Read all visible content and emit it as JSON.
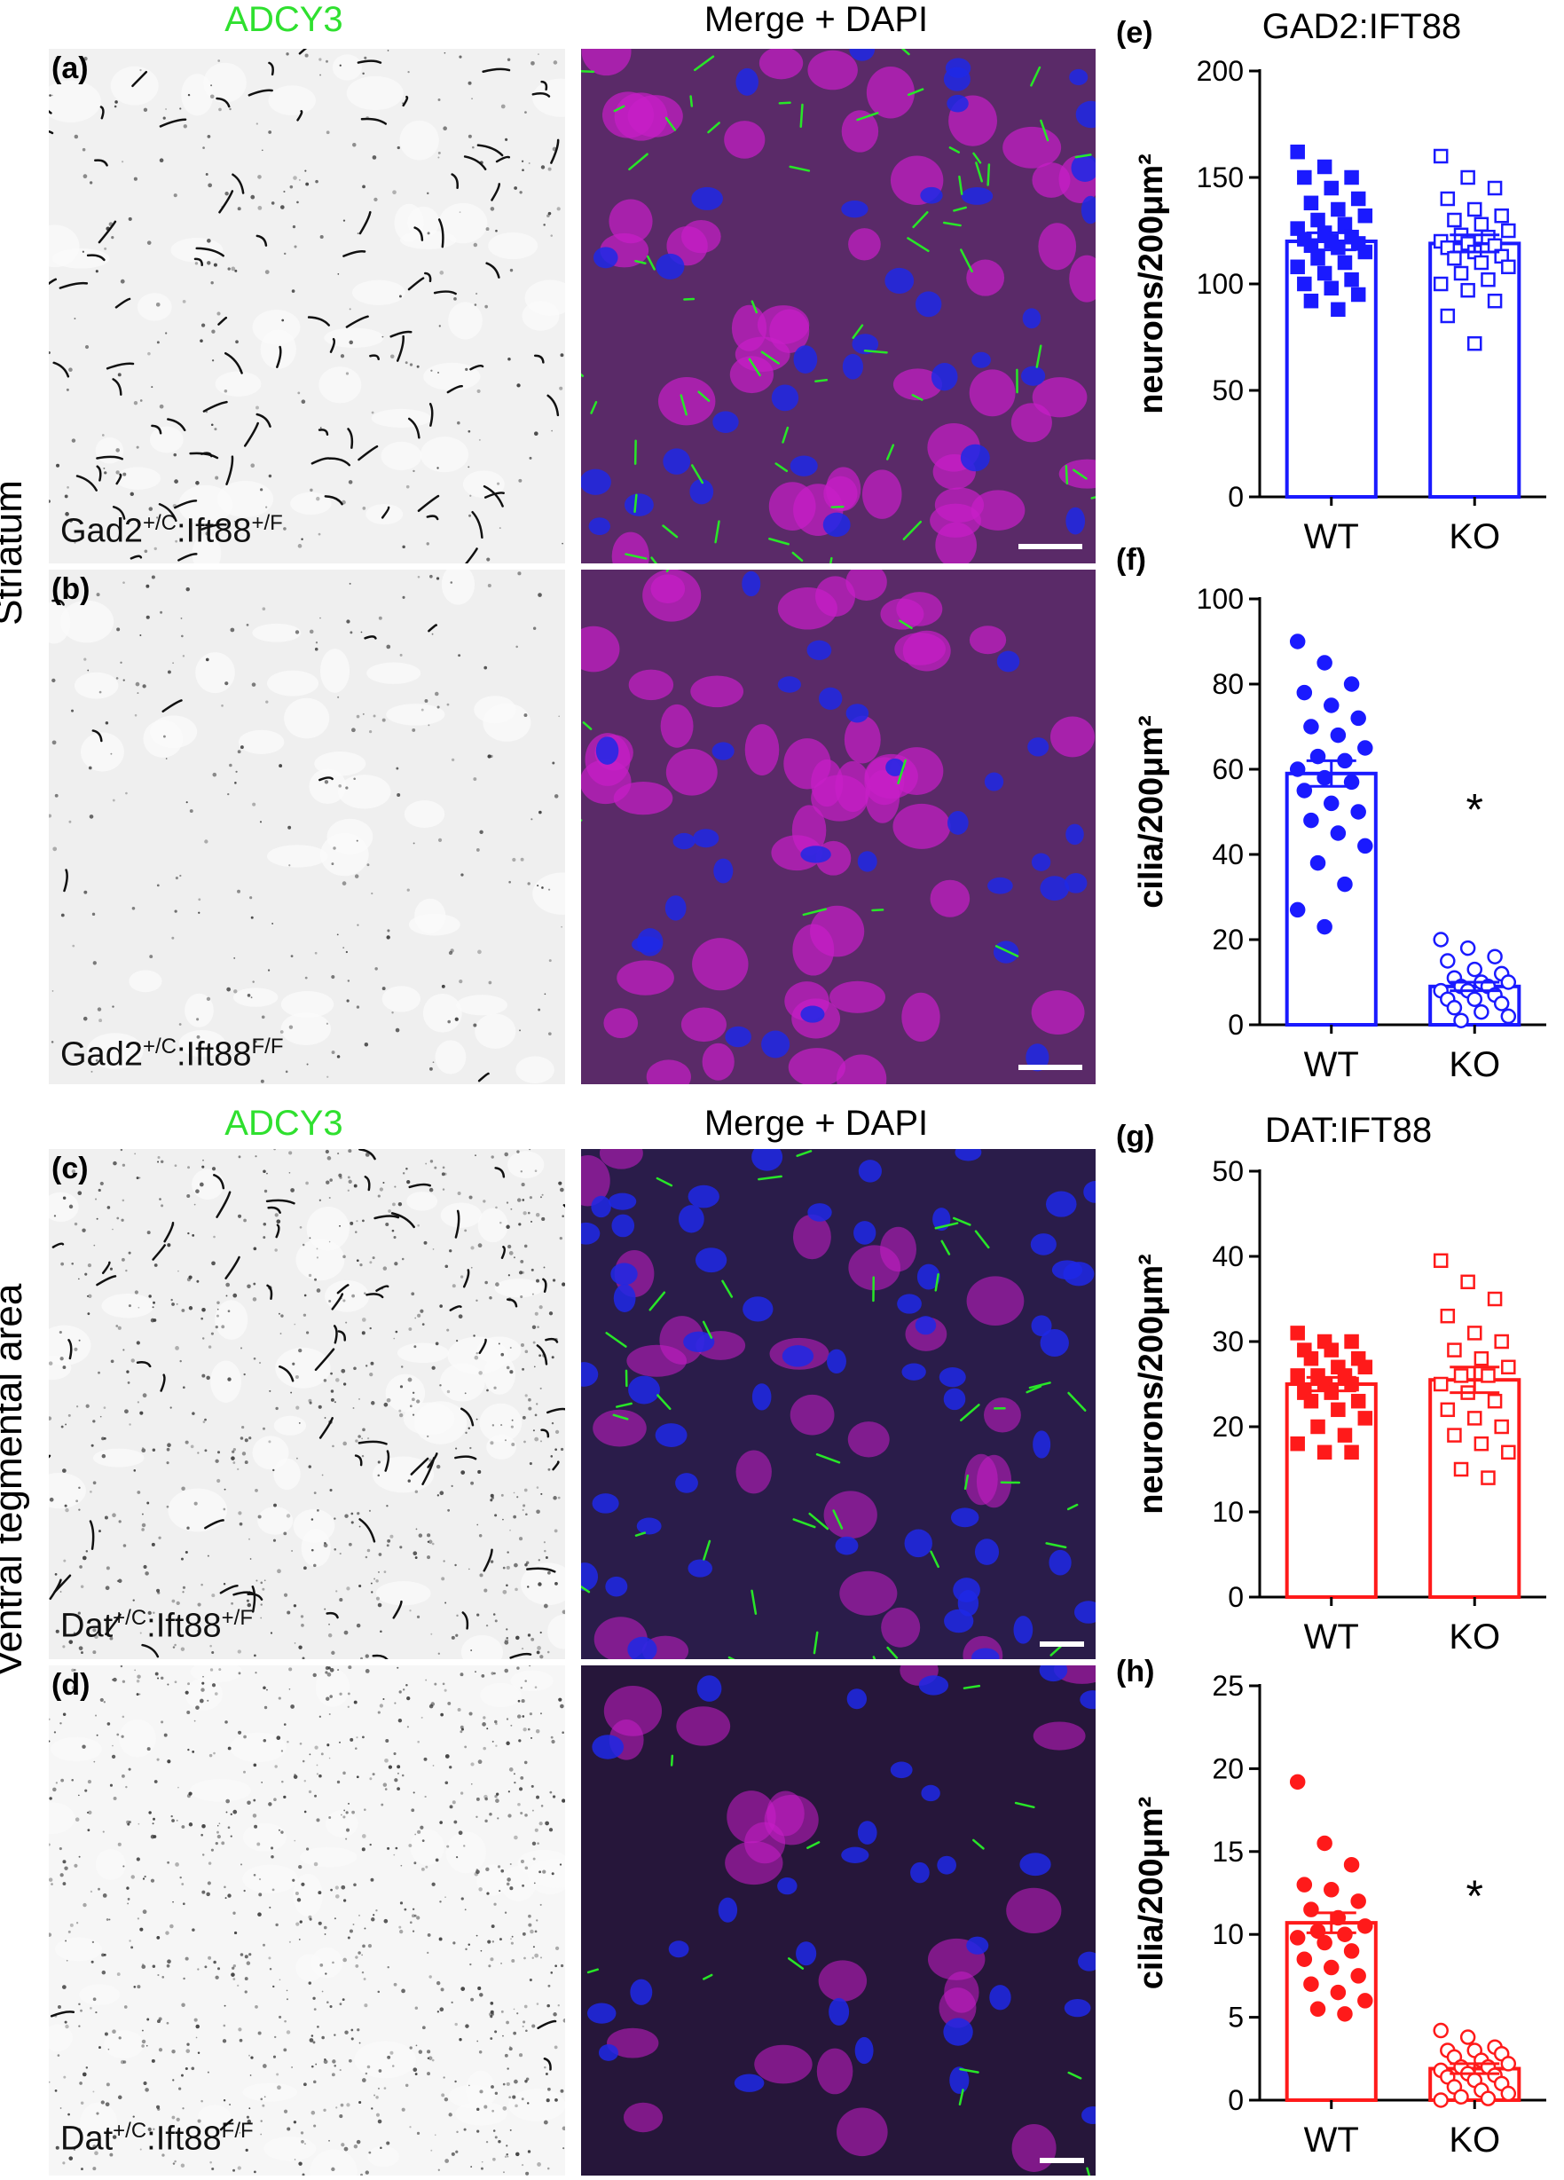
{
  "columns": {
    "adcy3": "ADCY3",
    "merge": "Merge + DAPI"
  },
  "regions": {
    "striatum": "Striatum",
    "vta": "Ventral tegmental area"
  },
  "panels": [
    {
      "letter": "(a)",
      "geno_base1": "Gad2",
      "geno_sup1": "+/C",
      "geno_base2": ":Ift88",
      "geno_sup2": "+/F"
    },
    {
      "letter": "(b)",
      "geno_base1": "Gad2",
      "geno_sup1": "+/C",
      "geno_base2": ":Ift88",
      "geno_sup2": "F/F"
    },
    {
      "letter": "(c)",
      "geno_base1": "Dat",
      "geno_sup1": "+/C",
      "geno_base2": ":Ift88",
      "geno_sup2": "+/F"
    },
    {
      "letter": "(d)",
      "geno_base1": "Dat",
      "geno_sup1": "+/C",
      "geno_base2": ":Ift88",
      "geno_sup2": "F/F"
    }
  ],
  "colors": {
    "blue": "#1a1aff",
    "red": "#ff1a1a",
    "magenta": "#c81ec8",
    "dapi": "#1e28e6",
    "cilia": "#28e628"
  },
  "chart_data": [
    {
      "id": "e",
      "letter": "(e)",
      "type": "bar",
      "title": "GAD2:IFT88",
      "ylabel": "neurons/200μm²",
      "ylim": [
        0,
        200
      ],
      "yticks": [
        0,
        50,
        100,
        150,
        200
      ],
      "categories": [
        "WT",
        "KO"
      ],
      "values": [
        120,
        119
      ],
      "sem": [
        4,
        4
      ],
      "color": "#1a1aff",
      "marker_wt": "square-filled",
      "marker_ko": "square-open",
      "points_wt": [
        162,
        155,
        150,
        150,
        145,
        140,
        138,
        135,
        132,
        130,
        128,
        126,
        124,
        122,
        121,
        120,
        119,
        118,
        117,
        115,
        112,
        110,
        108,
        105,
        102,
        100,
        98,
        95,
        92,
        88
      ],
      "points_ko": [
        160,
        150,
        145,
        140,
        135,
        132,
        130,
        128,
        125,
        123,
        122,
        120,
        119,
        118,
        117,
        115,
        113,
        112,
        110,
        108,
        105,
        102,
        100,
        97,
        92,
        85,
        72
      ],
      "sig": ""
    },
    {
      "id": "f",
      "letter": "(f)",
      "type": "bar",
      "title": "",
      "ylabel": "cilia/200μm²",
      "ylim": [
        0,
        100
      ],
      "yticks": [
        0,
        20,
        40,
        60,
        80,
        100
      ],
      "categories": [
        "WT",
        "KO"
      ],
      "values": [
        59,
        9
      ],
      "sem": [
        3,
        1
      ],
      "color": "#1a1aff",
      "marker_wt": "circle-filled",
      "marker_ko": "circle-open",
      "points_wt": [
        90,
        85,
        80,
        78,
        75,
        72,
        70,
        68,
        65,
        63,
        62,
        60,
        58,
        57,
        55,
        52,
        50,
        48,
        45,
        42,
        38,
        33,
        27,
        23
      ],
      "points_ko": [
        20,
        18,
        16,
        15,
        13,
        12,
        11,
        10,
        10,
        9,
        9,
        8,
        8,
        7,
        6,
        6,
        5,
        4,
        3,
        2,
        1
      ],
      "sig": "*"
    },
    {
      "id": "g",
      "letter": "(g)",
      "type": "bar",
      "title": "DAT:IFT88",
      "ylabel": "neurons/200μm²",
      "ylim": [
        0,
        50
      ],
      "yticks": [
        0,
        10,
        20,
        30,
        40,
        50
      ],
      "categories": [
        "WT",
        "KO"
      ],
      "values": [
        25,
        25.5
      ],
      "sem": [
        0.8,
        1.5
      ],
      "color": "#ff1a1a",
      "marker_wt": "square-filled",
      "marker_ko": "square-open",
      "points_wt": [
        31,
        30,
        30,
        29,
        29,
        28,
        28,
        27,
        27,
        26,
        26,
        26,
        25,
        25,
        24,
        24,
        23,
        23,
        22,
        21,
        20,
        19,
        18,
        17,
        17
      ],
      "points_ko": [
        39.5,
        37,
        35,
        33,
        31,
        30,
        29,
        28,
        27,
        26,
        26,
        25,
        24,
        23,
        22,
        21,
        20,
        19,
        18,
        17,
        15,
        14
      ],
      "sig": ""
    },
    {
      "id": "h",
      "letter": "(h)",
      "type": "bar",
      "title": "",
      "ylabel": "cilia/200μm²",
      "ylim": [
        0,
        25
      ],
      "yticks": [
        0,
        5,
        10,
        15,
        20,
        25
      ],
      "categories": [
        "WT",
        "KO"
      ],
      "values": [
        10.7,
        1.9
      ],
      "sem": [
        0.6,
        0.3
      ],
      "color": "#ff1a1a",
      "marker_wt": "circle-filled",
      "marker_ko": "circle-open",
      "points_wt": [
        19.2,
        15.5,
        14.2,
        13,
        12.7,
        12,
        11.5,
        11,
        10.5,
        10.2,
        10,
        9.8,
        9.5,
        9,
        8.5,
        8,
        7.5,
        7,
        6.5,
        6,
        5.5,
        5.2
      ],
      "points_ko": [
        4.2,
        3.8,
        3.2,
        3.0,
        3.0,
        2.8,
        2.6,
        2.4,
        2.2,
        2.0,
        2.0,
        1.8,
        1.6,
        1.5,
        1.4,
        1.2,
        1.0,
        0.8,
        0.6,
        0.4,
        0.2,
        0.1,
        0.0
      ],
      "sig": "*"
    }
  ]
}
